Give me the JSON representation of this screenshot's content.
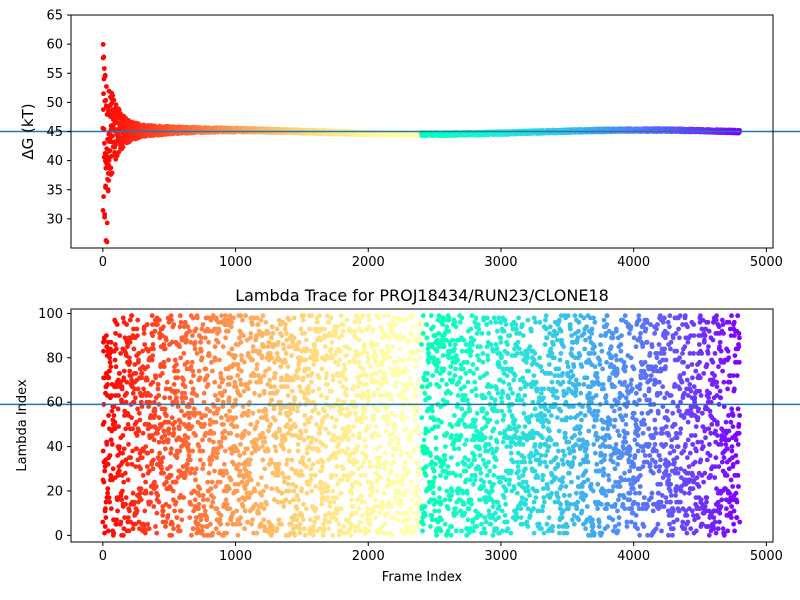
{
  "chart_data": [
    {
      "type": "scatter",
      "name": "delta-g",
      "title": "",
      "xlabel": "",
      "ylabel": "ΔG (kT)",
      "xlim": [
        -240,
        5050
      ],
      "ylim": [
        25,
        65
      ],
      "xticks": [
        0,
        1000,
        2000,
        3000,
        4000,
        5000
      ],
      "yticks": [
        30,
        35,
        40,
        45,
        50,
        55,
        60,
        65
      ],
      "hline": 45.0,
      "hline_color": "#1f77b4",
      "colormap": "rainbow (reversed along frame index)",
      "n_points": 4800,
      "initial_spread": [
        26,
        60
      ],
      "converged_value": 45.0,
      "grid": false
    },
    {
      "type": "scatter",
      "name": "lambda-trace",
      "title": "Lambda Trace for PROJ18434/RUN23/CLONE18",
      "xlabel": "Frame Index",
      "ylabel": "Lambda Index",
      "xlim": [
        -240,
        5050
      ],
      "ylim": [
        -3,
        102
      ],
      "xticks": [
        0,
        1000,
        2000,
        3000,
        4000,
        5000
      ],
      "yticks": [
        0,
        20,
        40,
        60,
        80,
        100
      ],
      "hline": 59,
      "hline_color": "#1f77b4",
      "colormap": "rainbow (reversed along frame index)",
      "n_points": 4800,
      "lambda_range": [
        0,
        99
      ],
      "grid": false
    }
  ]
}
